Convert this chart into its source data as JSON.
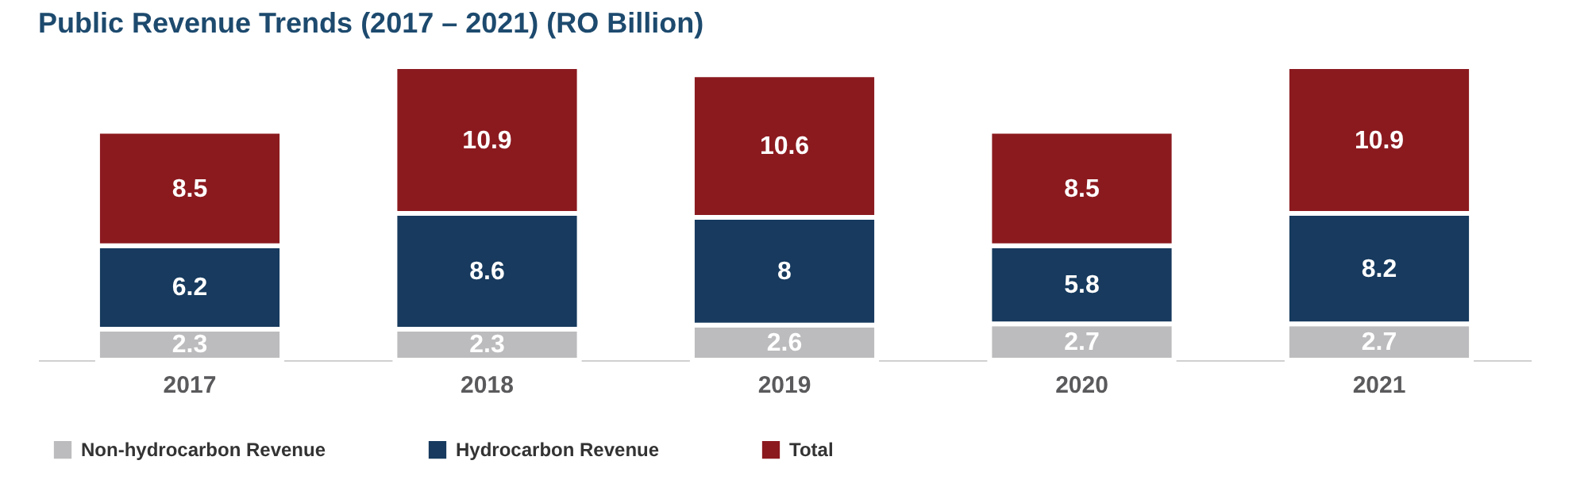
{
  "chart_data": {
    "type": "bar",
    "title": "Public Revenue Trends (2017 – 2021) (RO Billion)",
    "categories": [
      "2017",
      "2018",
      "2019",
      "2020",
      "2021"
    ],
    "stacked": true,
    "data_labels": true,
    "legend": "bottom",
    "tick_labels": "x",
    "series": [
      {
        "name": "Non-hydrocarbon Revenue",
        "color": "#bcbcbe",
        "values": [
          2.3,
          2.3,
          2.6,
          2.7,
          2.7
        ]
      },
      {
        "name": "Hydrocarbon Revenue",
        "color": "#173a5e",
        "values": [
          6.2,
          8.6,
          8,
          5.8,
          8.2
        ]
      },
      {
        "name": "Total",
        "color": "#8b1a1f",
        "values": [
          8.5,
          10.9,
          10.6,
          8.5,
          10.9
        ]
      }
    ]
  }
}
